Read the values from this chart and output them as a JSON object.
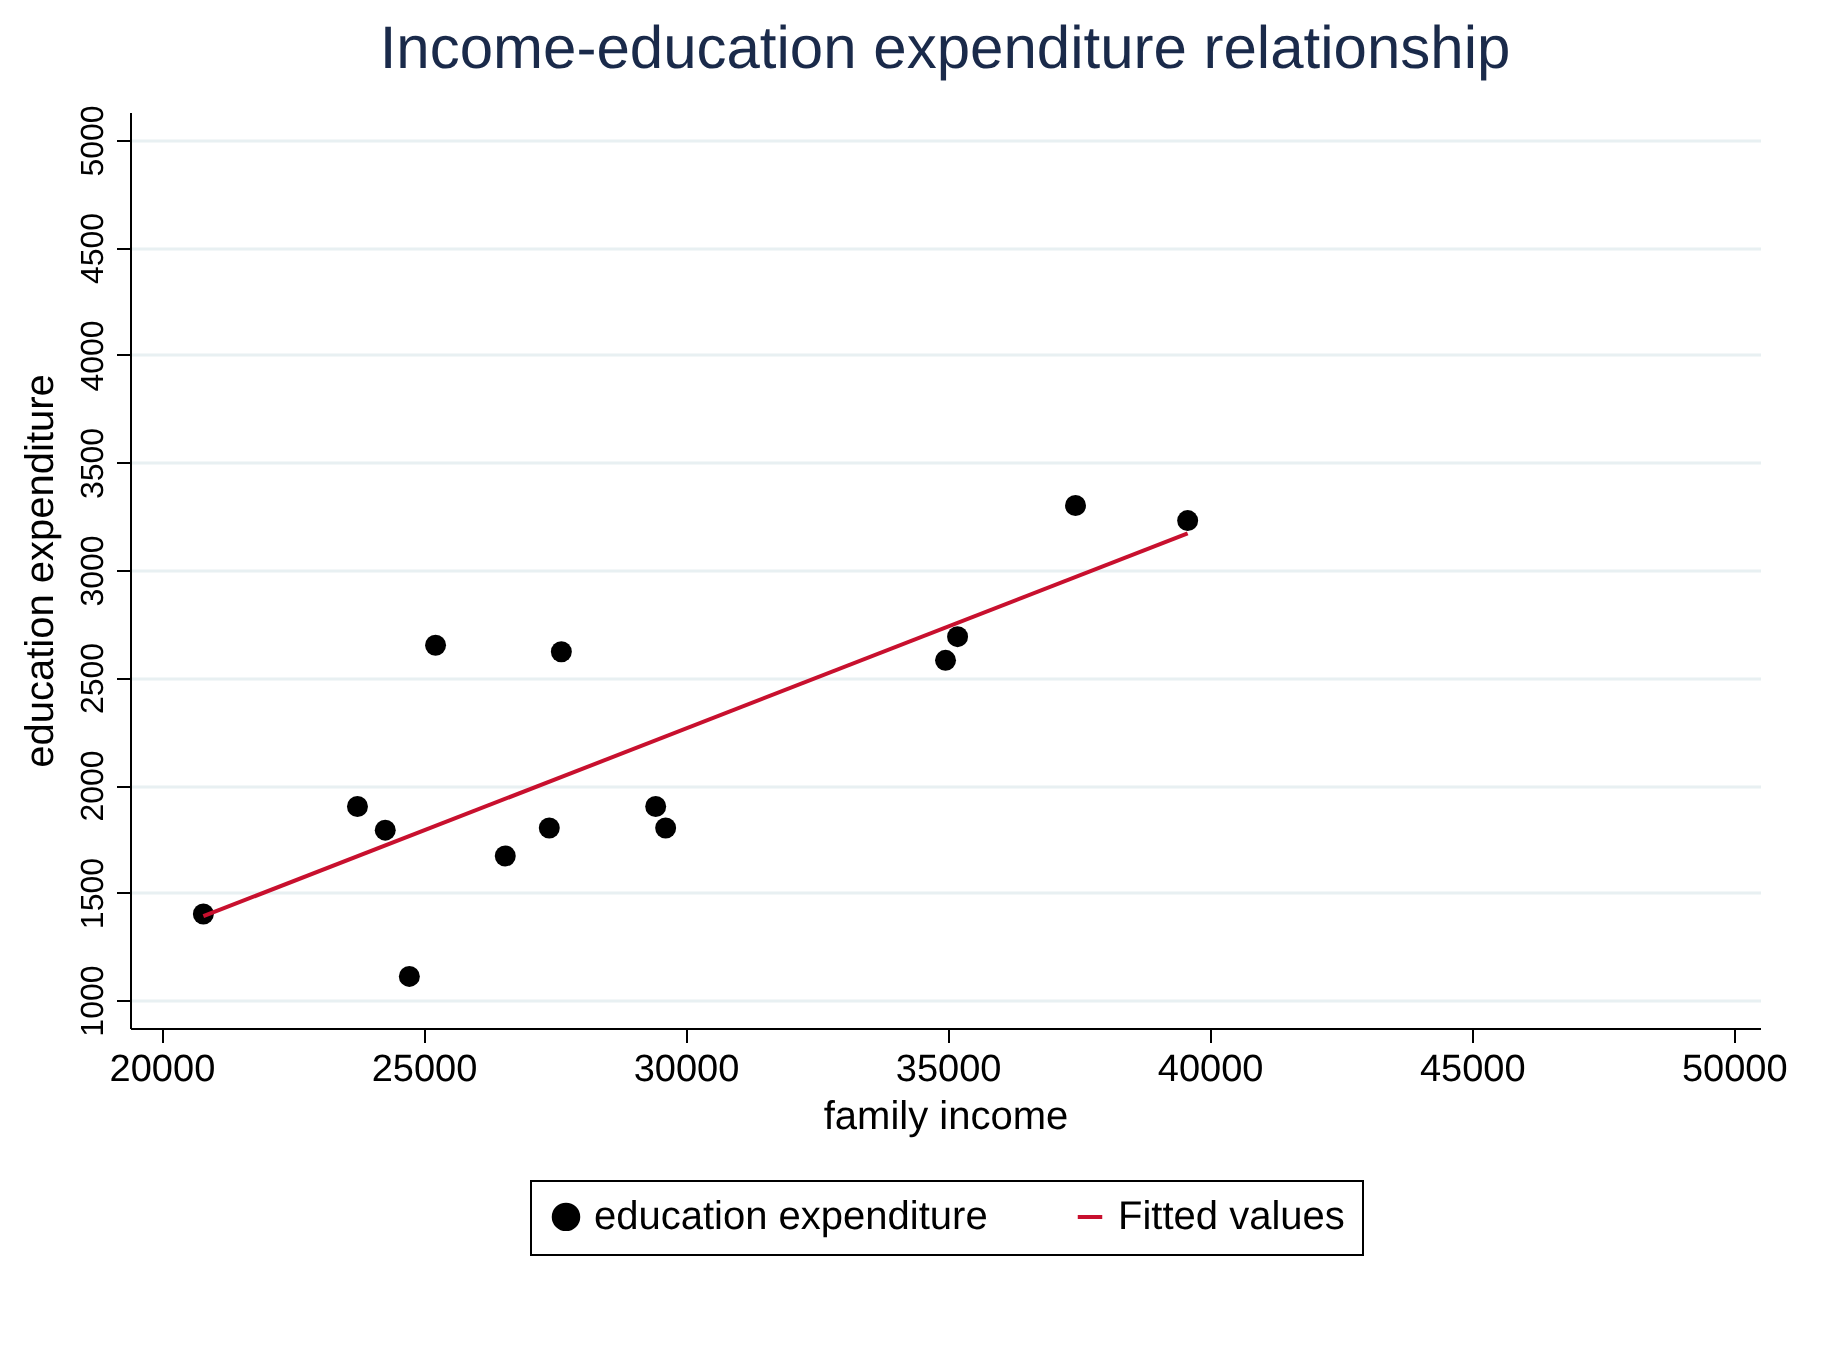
{
  "chart_data": {
    "type": "scatter",
    "title": "Income-education expenditure relationship",
    "xlabel": "family income",
    "ylabel": "education expenditure",
    "xlim": [
      19400,
      50500
    ],
    "xticks": [
      20000,
      25000,
      30000,
      35000,
      40000,
      45000,
      50000
    ],
    "ylim": [
      870,
      5130
    ],
    "yticks": [
      1000,
      1500,
      2000,
      2500,
      3000,
      3500,
      4000,
      4500,
      5000
    ],
    "grid": "y",
    "legend": "bottom",
    "series": [
      {
        "name": "education expenditure",
        "marker": "circle",
        "color": "#000000",
        "x": [
          20800,
          23740,
          24270,
          24730,
          25230,
          26560,
          27400,
          27630,
          29430,
          29620,
          34960,
          35190,
          37440,
          39580
        ],
        "values": [
          1400,
          1900,
          1790,
          1110,
          2650,
          1670,
          1800,
          2620,
          1900,
          1800,
          2580,
          2690,
          3300,
          3230
        ]
      },
      {
        "name": "Fitted values",
        "type": "line",
        "color": "#c8102e",
        "x": [
          20800,
          39580
        ],
        "values": [
          1390,
          3170
        ]
      }
    ]
  }
}
